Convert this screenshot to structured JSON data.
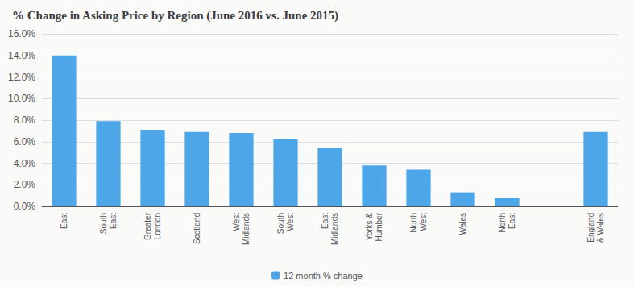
{
  "chart_data": {
    "type": "bar",
    "title": "% Change in Asking Price by Region (June 2016 vs. June 2015)",
    "categories": [
      "East",
      "South\nEast",
      "Greater\nLondon",
      "Scotland",
      "West\nMidlands",
      "South\nWest",
      "East\nMidlands",
      "Yorks &\nHumber",
      "North\nWest",
      "Wales",
      "North\nEast",
      null,
      "England\n& Wales"
    ],
    "series": [
      {
        "name": "12 month % change",
        "color": "#4da6e8",
        "values": [
          14.0,
          7.9,
          7.1,
          6.9,
          6.8,
          6.2,
          5.4,
          3.8,
          3.4,
          1.3,
          0.8,
          null,
          6.9
        ]
      }
    ],
    "ylim": [
      0,
      16.0
    ],
    "yticks": [
      {
        "value": 0,
        "label": "0.0%"
      },
      {
        "value": 2.0,
        "label": "2.0%"
      },
      {
        "value": 4.0,
        "label": "4.0%"
      },
      {
        "value": 6.0,
        "label": "6.0%"
      },
      {
        "value": 8.0,
        "label": "8.0%"
      },
      {
        "value": 10.0,
        "label": "10.0%"
      },
      {
        "value": 12.0,
        "label": "12.0%"
      },
      {
        "value": 14.0,
        "label": "14.0%"
      },
      {
        "value": 16.0,
        "label": "16.0%"
      }
    ],
    "grid": true,
    "legend": "bottom"
  }
}
